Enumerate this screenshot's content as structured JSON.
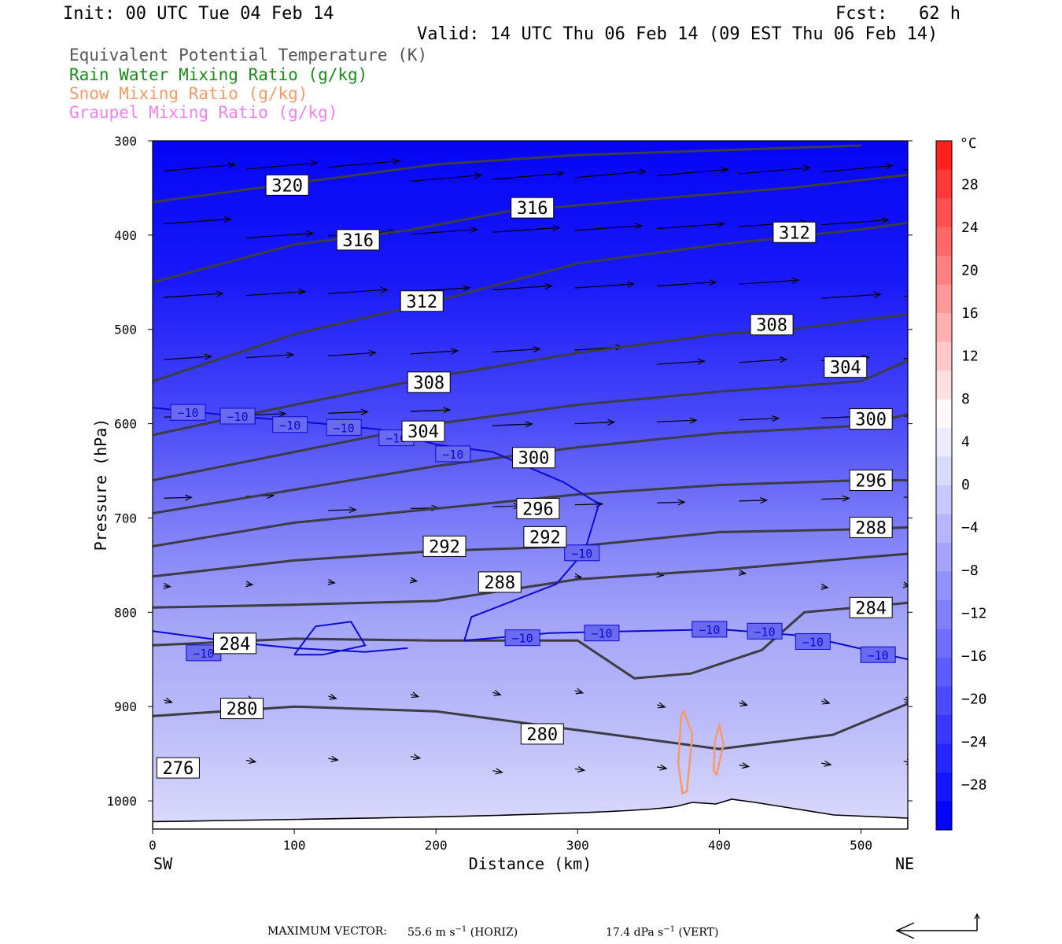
{
  "header": {
    "init": "Init: 00 UTC Tue 04 Feb 14",
    "fcst": "Fcst:   62 h",
    "valid": "Valid: 14 UTC Thu 06 Feb 14 (09 EST Thu 06 Feb 14)"
  },
  "fields": [
    {
      "label": "Equivalent Potential Temperature (K)",
      "color": "#555555"
    },
    {
      "label": "Rain Water Mixing Ratio (g/kg)",
      "color": "#1a8a1a"
    },
    {
      "label": "Snow Mixing Ratio (g/kg)",
      "color": "#f59a6a"
    },
    {
      "label": "Graupel Mixing Ratio (g/kg)",
      "color": "#ee82ee"
    }
  ],
  "chart_data": {
    "type": "cross-section",
    "xlabel": "Distance (km)",
    "ylabel": "Pressure (hPa)",
    "x_ticks": [
      0,
      100,
      200,
      300,
      400,
      500
    ],
    "xlim": [
      0,
      533
    ],
    "y_ticks": [
      300,
      400,
      500,
      600,
      700,
      800,
      900,
      1000
    ],
    "ylim": [
      300,
      1030
    ],
    "x_endpoints": {
      "left": "SW",
      "right": "NE"
    },
    "colorbar": {
      "unit": "°C",
      "tick_labels": [
        "28",
        "24",
        "20",
        "16",
        "12",
        "8",
        "4",
        "0",
        "−4",
        "−8",
        "−12",
        "−16",
        "−20",
        "−24",
        "−28"
      ],
      "colors": [
        "#ff2020",
        "#ff3838",
        "#ff5050",
        "#ff6868",
        "#ff8080",
        "#ff9898",
        "#ffb0b0",
        "#ffc8c8",
        "#ffe0e0",
        "#fff8f8",
        "#ececff",
        "#dadaff",
        "#c8c8ff",
        "#b6b6ff",
        "#a4a4ff",
        "#9292ff",
        "#8080ff",
        "#6e6eff",
        "#5c5cff",
        "#4a4aff",
        "#3838ff",
        "#2626ff",
        "#1414ff",
        "#0202ff"
      ]
    },
    "theta_e_contours": [
      {
        "level": 320,
        "points": [
          [
            0,
            365
          ],
          [
            100,
            345
          ],
          [
            200,
            325
          ],
          [
            300,
            315
          ],
          [
            400,
            310
          ],
          [
            500,
            305
          ]
        ]
      },
      {
        "level": 316,
        "points": [
          [
            0,
            450
          ],
          [
            100,
            410
          ],
          [
            180,
            395
          ],
          [
            250,
            375
          ],
          [
            350,
            362
          ],
          [
            450,
            350
          ],
          [
            533,
            336
          ]
        ]
      },
      {
        "level": 312,
        "points": [
          [
            0,
            555
          ],
          [
            100,
            505
          ],
          [
            200,
            470
          ],
          [
            300,
            430
          ],
          [
            400,
            410
          ],
          [
            500,
            394
          ],
          [
            533,
            387
          ]
        ]
      },
      {
        "level": 308,
        "points": [
          [
            0,
            612
          ],
          [
            100,
            580
          ],
          [
            200,
            550
          ],
          [
            300,
            525
          ],
          [
            400,
            505
          ],
          [
            450,
            500
          ],
          [
            533,
            484
          ]
        ]
      },
      {
        "level": 304,
        "points": [
          [
            0,
            660
          ],
          [
            100,
            630
          ],
          [
            200,
            600
          ],
          [
            300,
            580
          ],
          [
            400,
            566
          ],
          [
            500,
            555
          ],
          [
            533,
            533
          ]
        ]
      },
      {
        "level": 300,
        "points": [
          [
            0,
            695
          ],
          [
            100,
            670
          ],
          [
            200,
            645
          ],
          [
            300,
            625
          ],
          [
            400,
            610
          ],
          [
            500,
            602
          ],
          [
            533,
            590
          ]
        ]
      },
      {
        "level": 296,
        "points": [
          [
            0,
            730
          ],
          [
            100,
            705
          ],
          [
            200,
            690
          ],
          [
            300,
            675
          ],
          [
            400,
            665
          ],
          [
            500,
            660
          ],
          [
            533,
            660
          ]
        ]
      },
      {
        "level": 292,
        "points": [
          [
            0,
            762
          ],
          [
            100,
            745
          ],
          [
            200,
            735
          ],
          [
            300,
            730
          ],
          [
            400,
            715
          ],
          [
            500,
            712
          ],
          [
            533,
            710
          ]
        ]
      },
      {
        "level": 288,
        "points": [
          [
            0,
            795
          ],
          [
            100,
            792
          ],
          [
            200,
            788
          ],
          [
            300,
            765
          ],
          [
            400,
            755
          ],
          [
            500,
            742
          ],
          [
            533,
            738
          ]
        ]
      },
      {
        "level": 284,
        "points": [
          [
            0,
            835
          ],
          [
            100,
            828
          ],
          [
            200,
            830
          ],
          [
            300,
            830
          ],
          [
            340,
            870
          ],
          [
            380,
            865
          ],
          [
            430,
            840
          ],
          [
            460,
            800
          ],
          [
            533,
            790
          ]
        ]
      },
      {
        "level": 280,
        "points": [
          [
            0,
            910
          ],
          [
            100,
            900
          ],
          [
            200,
            905
          ],
          [
            300,
            925
          ],
          [
            400,
            945
          ],
          [
            480,
            930
          ],
          [
            533,
            897
          ]
        ]
      }
    ],
    "theta_e_labels": [
      {
        "text": "320",
        "x": 95,
        "p": 347
      },
      {
        "text": "316",
        "x": 268,
        "p": 371
      },
      {
        "text": "316",
        "x": 145,
        "p": 405
      },
      {
        "text": "312",
        "x": 453,
        "p": 397
      },
      {
        "text": "312",
        "x": 190,
        "p": 470
      },
      {
        "text": "308",
        "x": 437,
        "p": 495
      },
      {
        "text": "304",
        "x": 489,
        "p": 540
      },
      {
        "text": "308",
        "x": 195,
        "p": 556
      },
      {
        "text": "300",
        "x": 507,
        "p": 595
      },
      {
        "text": "304",
        "x": 191,
        "p": 608
      },
      {
        "text": "300",
        "x": 269,
        "p": 636
      },
      {
        "text": "296",
        "x": 507,
        "p": 660
      },
      {
        "text": "296",
        "x": 272,
        "p": 690
      },
      {
        "text": "292",
        "x": 277,
        "p": 720
      },
      {
        "text": "292",
        "x": 206,
        "p": 730
      },
      {
        "text": "288",
        "x": 507,
        "p": 710
      },
      {
        "text": "288",
        "x": 245,
        "p": 768
      },
      {
        "text": "284",
        "x": 507,
        "p": 795
      },
      {
        "text": "284",
        "x": 58,
        "p": 833
      },
      {
        "text": "280",
        "x": 63,
        "p": 902
      },
      {
        "text": "280",
        "x": 275,
        "p": 929
      },
      {
        "text": "276",
        "x": 18,
        "p": 965
      }
    ],
    "minus10_isotherm_labels": [
      {
        "text": "−10",
        "x": 25,
        "p": 588
      },
      {
        "text": "−10",
        "x": 60,
        "p": 592
      },
      {
        "text": "−10",
        "x": 97,
        "p": 601
      },
      {
        "text": "−10",
        "x": 135,
        "p": 604
      },
      {
        "text": "−10",
        "x": 172,
        "p": 615
      },
      {
        "text": "−10",
        "x": 212,
        "p": 632
      },
      {
        "text": "−10",
        "x": 303,
        "p": 737
      },
      {
        "text": "−10",
        "x": 261,
        "p": 827
      },
      {
        "text": "−10",
        "x": 317,
        "p": 822
      },
      {
        "text": "−10",
        "x": 393,
        "p": 818
      },
      {
        "text": "−10",
        "x": 432,
        "p": 820
      },
      {
        "text": "−10",
        "x": 466,
        "p": 831
      },
      {
        "text": "−10",
        "x": 512,
        "p": 845
      },
      {
        "text": "−10",
        "x": 36,
        "p": 843
      }
    ],
    "snow_contours": [
      {
        "points": [
          [
            375,
            905
          ],
          [
            381,
            930
          ],
          [
            377,
            990
          ],
          [
            374,
            992
          ],
          [
            371,
            960
          ],
          [
            373,
            910
          ]
        ]
      },
      {
        "points": [
          [
            400,
            920
          ],
          [
            403,
            940
          ],
          [
            398,
            972
          ],
          [
            396,
            968
          ],
          [
            397,
            935
          ]
        ]
      }
    ]
  },
  "footer": {
    "max_vector_label": "MAXIMUM VECTOR:",
    "horiz_value": "55.6 m s",
    "horiz_sup": "−1",
    "horiz_unit": " (HORIZ)",
    "vert_value": "17.4 dPa s",
    "vert_sup": "−1",
    "vert_unit": " (VERT)"
  }
}
